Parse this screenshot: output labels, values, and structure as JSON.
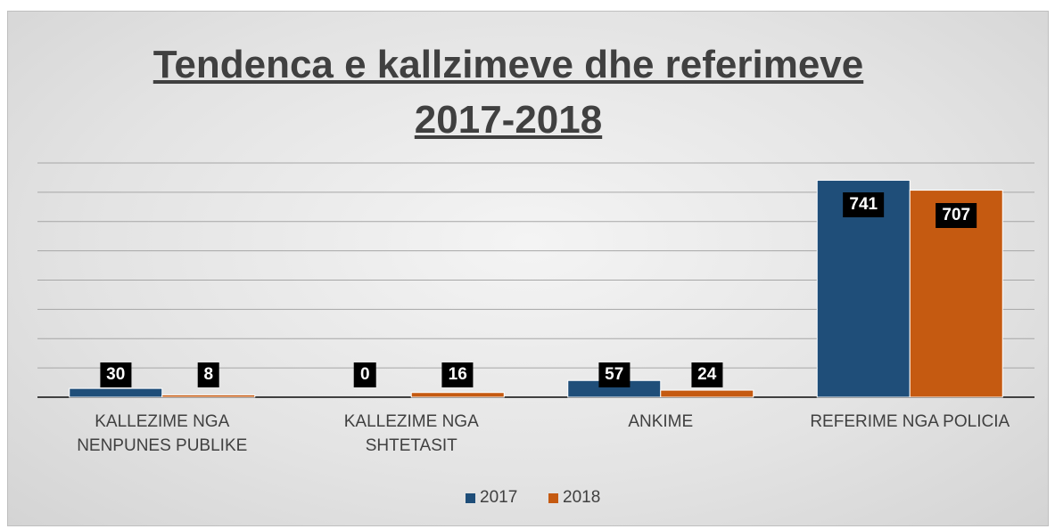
{
  "chart_data": {
    "type": "bar",
    "title": "Tendenca e kallzimeve dhe referimeve 2017-2018",
    "categories": [
      "KALLEZIME NGA NENPUNES PUBLIKE",
      "KALLEZIME NGA SHTETASIT",
      "ANKIME",
      "REFERIME NGA POLICIA"
    ],
    "series": [
      {
        "name": "2017",
        "color": "#1f4e79",
        "values": [
          30,
          0,
          57,
          741
        ]
      },
      {
        "name": "2018",
        "color": "#c55a11",
        "values": [
          8,
          16,
          24,
          707
        ]
      }
    ],
    "ylim": [
      0,
      800
    ],
    "yticks": [
      0,
      100,
      200,
      300,
      400,
      500,
      600,
      700,
      800
    ],
    "grid": true,
    "legend": "bottom"
  }
}
